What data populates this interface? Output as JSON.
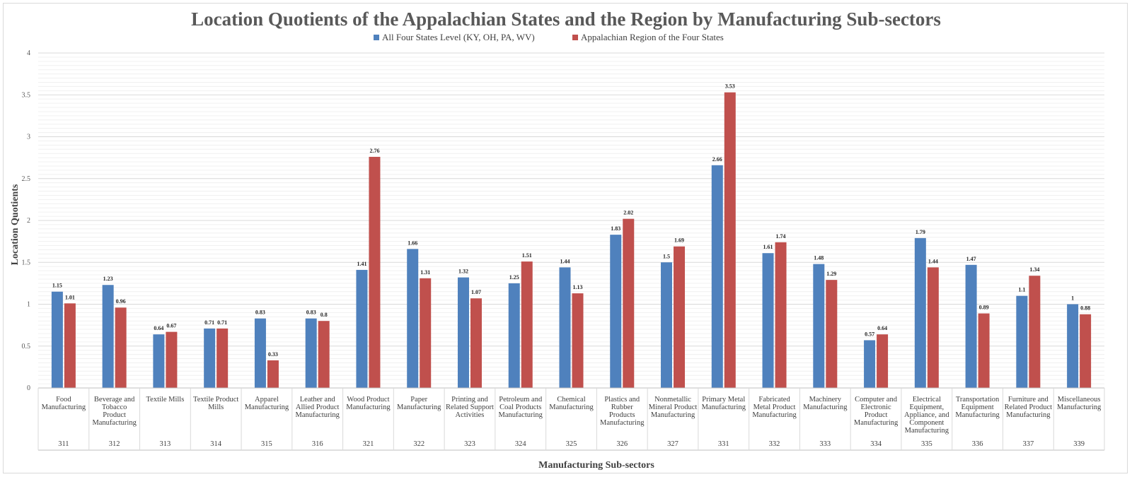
{
  "chart_data": {
    "type": "bar",
    "title": "Location Quotients of the Appalachian States and the Region by Manufacturing Sub-sectors",
    "xlabel": "Manufacturing Sub-sectors",
    "ylabel": "Location Quotients",
    "ylim": [
      0,
      4
    ],
    "yticks": [
      "0",
      "0.5",
      "1",
      "1.5",
      "2",
      "2.5",
      "3",
      "3.5",
      "4"
    ],
    "grid": true,
    "legend_position": "top",
    "categories": [
      [
        "Food",
        "Manufacturing"
      ],
      [
        "Beverage and",
        "Tobacco",
        "Product",
        "Manufacturing"
      ],
      [
        "Textile Mills"
      ],
      [
        "Textile Product",
        "Mills"
      ],
      [
        "Apparel",
        "Manufacturing"
      ],
      [
        "Leather and",
        "Allied Product",
        "Manufacturing"
      ],
      [
        "Wood Product",
        "Manufacturing"
      ],
      [
        "Paper",
        "Manufacturing"
      ],
      [
        "Printing and",
        "Related Support",
        "Activities"
      ],
      [
        "Petroleum and",
        "Coal Products",
        "Manufacturing"
      ],
      [
        "Chemical",
        "Manufacturing"
      ],
      [
        "Plastics and",
        "Rubber",
        "Products",
        "Manufacturing"
      ],
      [
        "Nonmetallic",
        "Mineral Product",
        "Manufacturing"
      ],
      [
        "Primary Metal",
        "Manufacturing"
      ],
      [
        "Fabricated",
        "Metal Product",
        "Manufacturing"
      ],
      [
        "Machinery",
        "Manufacturing"
      ],
      [
        "Computer and",
        "Electronic",
        "Product",
        "Manufacturing"
      ],
      [
        "Electrical",
        "Equipment,",
        "Appliance, and",
        "Component",
        "Manufacturing"
      ],
      [
        "Transportation",
        "Equipment",
        "Manufacturing"
      ],
      [
        "Furniture and",
        "Related Product",
        "Manufacturing"
      ],
      [
        "Miscellaneous",
        "Manufacturing"
      ]
    ],
    "codes": [
      "311",
      "312",
      "313",
      "314",
      "315",
      "316",
      "321",
      "322",
      "323",
      "324",
      "325",
      "326",
      "327",
      "331",
      "332",
      "333",
      "334",
      "335",
      "336",
      "337",
      "339"
    ],
    "series": [
      {
        "name": "All Four States Level (KY, OH, PA, WV)",
        "color": "#4f81bd",
        "values": [
          1.15,
          1.23,
          0.64,
          0.71,
          0.83,
          0.83,
          1.41,
          1.66,
          1.32,
          1.25,
          1.44,
          1.83,
          1.5,
          2.66,
          1.61,
          1.48,
          0.57,
          1.79,
          1.47,
          1.1,
          1
        ],
        "labels": [
          "1.15",
          "1.23",
          "0.64",
          "0.71",
          "0.83",
          "0.83",
          "1.41",
          "1.66",
          "1.32",
          "1.25",
          "1.44",
          "1.83",
          "1.5",
          "2.66",
          "1.61",
          "1.48",
          "0.57",
          "1.79",
          "1.47",
          "1.1",
          "1"
        ]
      },
      {
        "name": "Appalachian Region of the Four States",
        "color": "#c0504d",
        "values": [
          1.01,
          0.96,
          0.67,
          0.71,
          0.33,
          0.8,
          2.76,
          1.31,
          1.07,
          1.51,
          1.13,
          2.02,
          1.69,
          3.53,
          1.74,
          1.29,
          0.64,
          1.44,
          0.89,
          1.34,
          0.88
        ],
        "labels": [
          "1.01",
          "0.96",
          "0.67",
          "0.71",
          "0.33",
          "0.8",
          "2.76",
          "1.31",
          "1.07",
          "1.51",
          "1.13",
          "2.02",
          "1.69",
          "3.53",
          "1.74",
          "1.29",
          "0.64",
          "1.44",
          "0.89",
          "1.34",
          "0.88"
        ]
      }
    ]
  }
}
